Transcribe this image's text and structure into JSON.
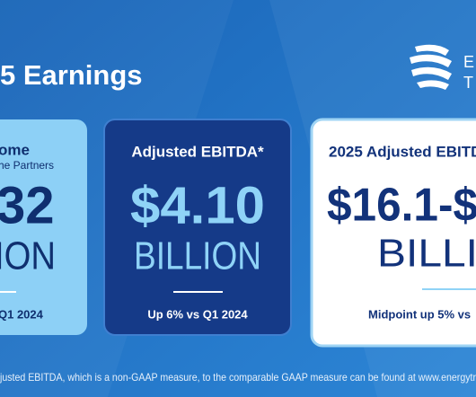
{
  "header": {
    "title": "5 Earnings",
    "logo_line1": "E",
    "logo_line2": "T"
  },
  "cards": [
    {
      "heading": "ome",
      "subheading": "he Partners",
      "figure": "32",
      "unit": "ION",
      "note": "Q1 2024"
    },
    {
      "heading": "Adjusted EBITDA*",
      "figure": "$4.10",
      "unit": "BILLION",
      "note": "Up 6% vs Q1 2024"
    },
    {
      "heading": "2025 Adjusted EBITD",
      "figure": "$16.1-$",
      "unit": "BILLI",
      "note": "Midpoint up 5% vs"
    }
  ],
  "footer": {
    "text": "justed EBITDA, which is a non-GAAP measure, to the comparable GAAP measure can be found at www.energytr"
  }
}
